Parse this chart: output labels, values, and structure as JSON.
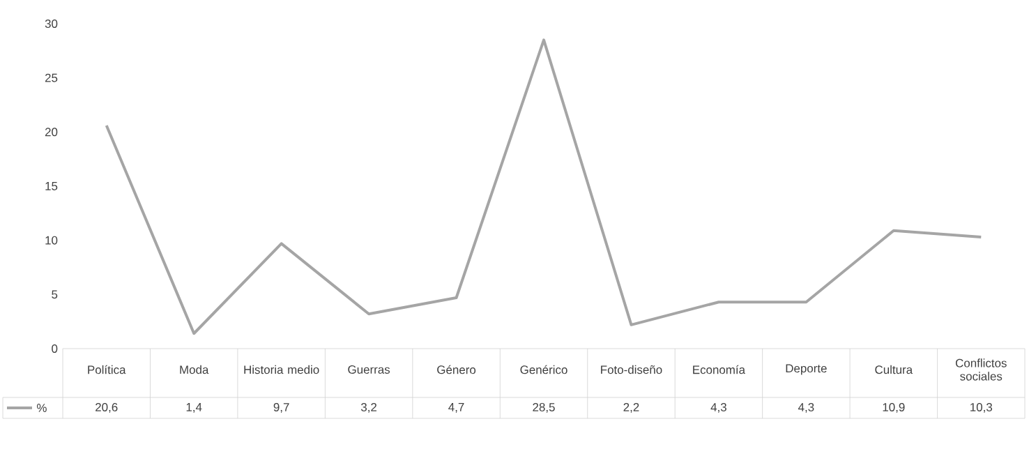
{
  "chart_data": {
    "type": "line",
    "categories": [
      "Política",
      "Moda",
      "Historia medio",
      "Guerras",
      "Género",
      "Genérico",
      "Foto-diseño",
      "Economía",
      "Deporte",
      "Cultura",
      "Conflictos sociales"
    ],
    "series": [
      {
        "name": "%",
        "color": "#a5a5a5",
        "values": [
          20.6,
          1.4,
          9.7,
          3.2,
          4.7,
          28.5,
          2.2,
          4.3,
          4.3,
          10.9,
          10.3
        ],
        "value_labels": [
          "20,6",
          "1,4",
          "9,7",
          "3,2",
          "4,7",
          "28,5",
          "2,2",
          "4,3",
          "4,3",
          "10,9",
          "10,3"
        ]
      }
    ],
    "ylim": [
      0,
      30
    ],
    "yticks": [
      0,
      5,
      10,
      15,
      20,
      25,
      30
    ],
    "legend": "bottom"
  }
}
